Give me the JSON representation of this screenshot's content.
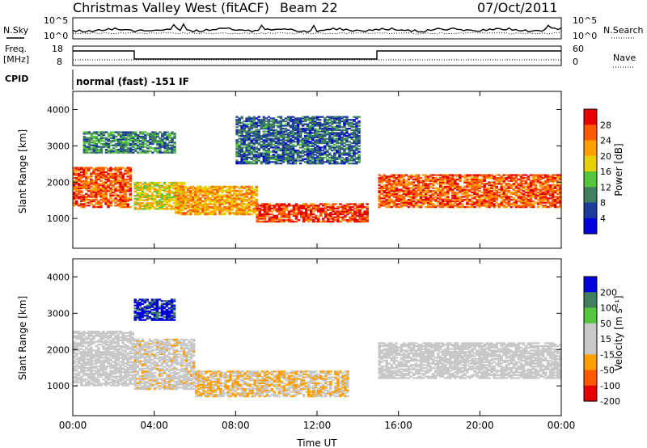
{
  "header": {
    "site": "Christmas Valley West (fitACF)",
    "beam": "Beam 22",
    "date": "07/Oct/2011"
  },
  "noise_panel": {
    "left_label": "N.Sky",
    "right_label": "N.Search",
    "left_ticks": [
      "10^5",
      "10^0"
    ],
    "right_ticks": [
      "10^5",
      "10^0"
    ]
  },
  "freq_panel": {
    "left_label_1": "Freq.",
    "left_label_2": "[MHz]",
    "right_label": "Nave",
    "left_ticks": [
      "18",
      "8"
    ],
    "right_ticks": [
      "60",
      "0"
    ]
  },
  "cpid": {
    "label": "CPID",
    "text": "normal (fast) -151 IF"
  },
  "x_axis": {
    "label": "Time UT",
    "ticks": [
      "00:00",
      "04:00",
      "08:00",
      "12:00",
      "16:00",
      "20:00",
      "00:00"
    ]
  },
  "colors": {
    "power": [
      "#0000dc",
      "#1e3c9c",
      "#3f7f5f",
      "#56c640",
      "#e6d200",
      "#ffa000",
      "#ff5a00",
      "#e60000"
    ],
    "velocity": [
      "#e60000",
      "#ff5a00",
      "#ffa000",
      "#c8c8c8",
      "#c8c8c8",
      "#56c640",
      "#3f7f5f",
      "#0000dc"
    ]
  },
  "chart_data": [
    {
      "type": "heatmap",
      "title": "Power",
      "ylabel": "Slant Range [km]",
      "xlabel": "",
      "xlim": [
        0,
        24
      ],
      "ylim": [
        180,
        4500
      ],
      "y_ticks": [
        "1000",
        "2000",
        "3000",
        "4000"
      ],
      "colorbar_label": "Power [dB]",
      "colorbar_ticks": [
        "28",
        "24",
        "20",
        "16",
        "12",
        "8",
        "4"
      ],
      "colorbar_range": [
        0,
        32
      ],
      "echo_bands": [
        {
          "t": [
            0,
            2.8
          ],
          "range": [
            1300,
            2400
          ],
          "value": 26
        },
        {
          "t": [
            3.0,
            5.5
          ],
          "range": [
            1250,
            2000
          ],
          "value": 18
        },
        {
          "t": [
            5.0,
            9.0
          ],
          "range": [
            1100,
            1900
          ],
          "value": 22
        },
        {
          "t": [
            9.0,
            14.5
          ],
          "range": [
            900,
            1400
          ],
          "value": 28
        },
        {
          "t": [
            15.0,
            24
          ],
          "range": [
            1300,
            2200
          ],
          "value": 26
        },
        {
          "t": [
            0.5,
            5.0
          ],
          "range": [
            2800,
            3400
          ],
          "value": 10
        },
        {
          "t": [
            8.0,
            14.0
          ],
          "range": [
            2500,
            3800
          ],
          "value": 8
        }
      ]
    },
    {
      "type": "heatmap",
      "title": "Velocity",
      "ylabel": "Slant Range [km]",
      "xlabel": "Time UT",
      "xlim": [
        0,
        24
      ],
      "ylim": [
        180,
        4500
      ],
      "y_ticks": [
        "1000",
        "2000",
        "3000",
        "4000"
      ],
      "colorbar_label": "Velocity [m s⁻¹]",
      "colorbar_ticks": [
        "200",
        "100",
        "50",
        "15",
        "-15",
        "-50",
        "-100",
        "-200"
      ],
      "colorbar_range": [
        -250,
        250
      ],
      "echo_bands": [
        {
          "t": [
            0,
            3.0
          ],
          "range": [
            1000,
            2500
          ],
          "value": 0
        },
        {
          "t": [
            3.0,
            6.0
          ],
          "range": [
            900,
            2300
          ],
          "value": -40
        },
        {
          "t": [
            6.0,
            13.5
          ],
          "range": [
            700,
            1400
          ],
          "value": -60
        },
        {
          "t": [
            15.0,
            24
          ],
          "range": [
            1200,
            2200
          ],
          "value": 0
        },
        {
          "t": [
            3.0,
            5.0
          ],
          "range": [
            2800,
            3400
          ],
          "value": 200
        }
      ]
    }
  ]
}
